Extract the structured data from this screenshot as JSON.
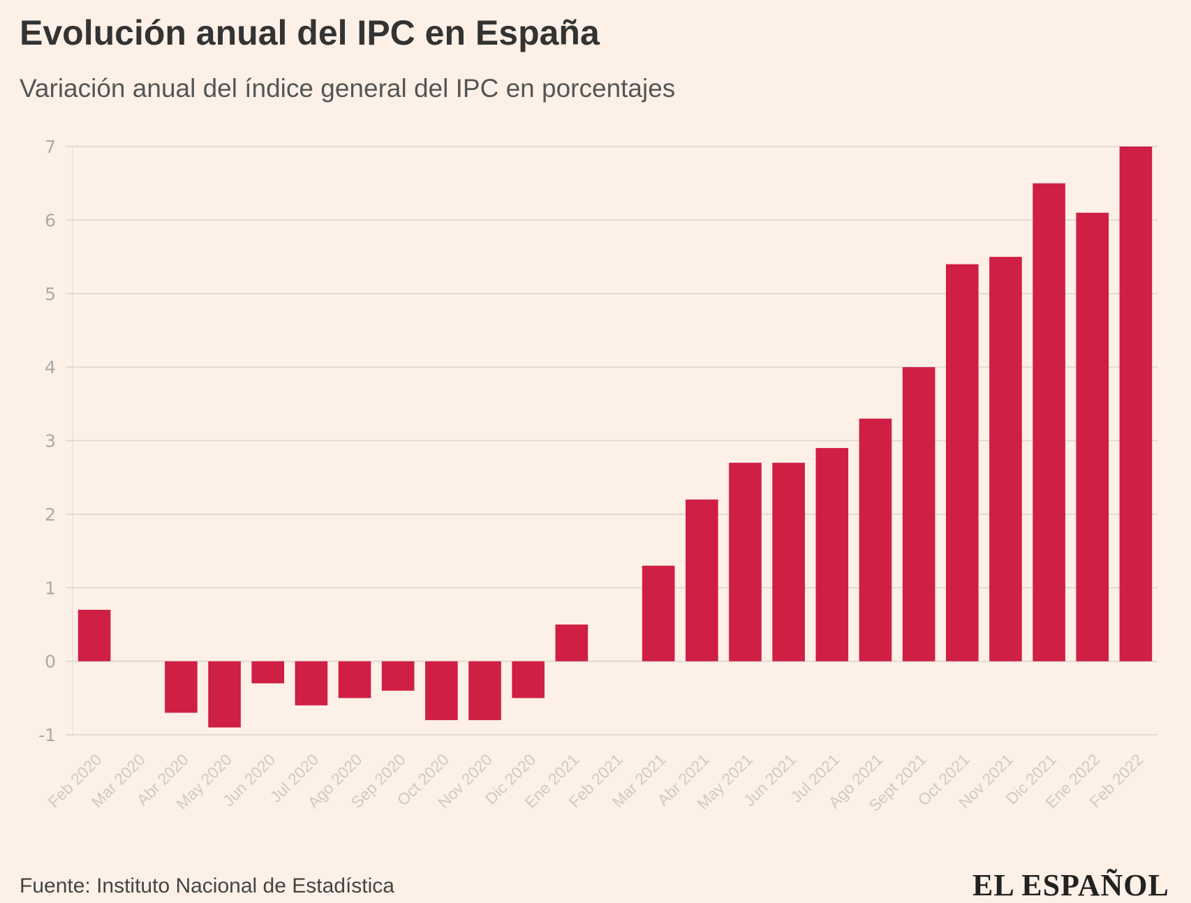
{
  "chart_data": {
    "type": "bar",
    "title": "Evolución anual del IPC en España",
    "subtitle": "Variación anual del índice general del IPC en porcentajes",
    "xlabel": "",
    "ylabel": "",
    "ylim": [
      -1,
      7
    ],
    "yticks": [
      -1,
      0,
      1,
      2,
      3,
      4,
      5,
      6,
      7
    ],
    "grid": true,
    "categories": [
      "Feb 2020",
      "Mar 2020",
      "Abr 2020",
      "May 2020",
      "Jun 2020",
      "Jul 2020",
      "Ago 2020",
      "Sep 2020",
      "Oct 2020",
      "Nov 2020",
      "Dic 2020",
      "Ene 2021",
      "Feb 2021",
      "Mar 2021",
      "Abr 2021",
      "May 2021",
      "Jun 2021",
      "Jul 2021",
      "Ago 2021",
      "Sept 2021",
      "Oct 2021",
      "Nov 2021",
      "Dic 2021",
      "Ene 2022",
      "Feb 2022"
    ],
    "values": [
      0.7,
      0,
      -0.7,
      -0.9,
      -0.3,
      -0.6,
      -0.5,
      -0.4,
      -0.8,
      -0.8,
      -0.5,
      0.5,
      0,
      1.3,
      2.2,
      2.7,
      2.7,
      2.9,
      3.3,
      4.0,
      5.4,
      5.5,
      6.5,
      6.1,
      7.0
    ],
    "colors": {
      "bar": "#cf1f45",
      "background": "#fdf0e6",
      "grid": "#d9d4cf",
      "tick": "#aaaaaa"
    }
  },
  "footer": {
    "source": "Fuente: Instituto Nacional de Estadística",
    "logo": "EL ESPAÑOL"
  }
}
